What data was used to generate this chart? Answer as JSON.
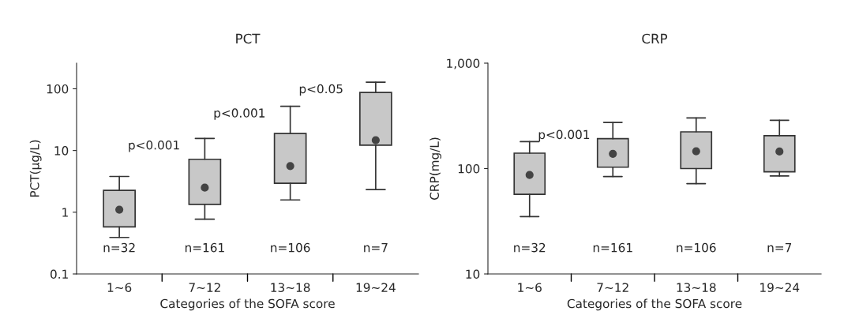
{
  "chart_data": [
    {
      "type": "box",
      "title": "PCT",
      "xlabel": "Categories of the SOFA score",
      "ylabel": "PCT(μg/L)",
      "log": true,
      "ylim": [
        0.1,
        260
      ],
      "yticks": [
        0.1,
        1,
        10,
        100
      ],
      "grid": false,
      "categories": [
        "1∼6",
        "7∼12",
        "13∼18",
        "19∼24"
      ],
      "color": "#c8c8c8",
      "boxes": [
        {
          "low": 0.39,
          "q1": 0.58,
          "median": 1.1,
          "q3": 2.26,
          "high": 3.8
        },
        {
          "low": 0.77,
          "q1": 1.34,
          "median": 2.5,
          "q3": 7.2,
          "high": 15.7
        },
        {
          "low": 1.58,
          "q1": 2.95,
          "median": 5.6,
          "q3": 18.8,
          "high": 52
        },
        {
          "low": 2.33,
          "q1": 12.2,
          "median": 14.7,
          "q3": 87,
          "high": 128
        }
      ],
      "annotations": [
        "n=32",
        "n=161",
        "n=106",
        "n=7",
        "p<0.001",
        "p<0.001",
        "p<0.05"
      ]
    },
    {
      "type": "box",
      "title": "CRP",
      "xlabel": "Categories of the SOFA score",
      "ylabel": "CRP(mg/L)",
      "log": true,
      "ylim": [
        10,
        1000
      ],
      "yticks": [
        10,
        100,
        {
          "value": 1000,
          "label": "1,000"
        }
      ],
      "grid": false,
      "categories": [
        "1∼6",
        "7∼12",
        "13∼18",
        "19∼24"
      ],
      "color": "#c8c8c8",
      "boxes": [
        {
          "low": 35,
          "q1": 57,
          "median": 87,
          "q3": 140,
          "high": 180
        },
        {
          "low": 84,
          "q1": 103,
          "median": 138,
          "q3": 192,
          "high": 274
        },
        {
          "low": 72,
          "q1": 100,
          "median": 146,
          "q3": 223,
          "high": 302
        },
        {
          "low": 85,
          "q1": 93,
          "median": 145,
          "q3": 205,
          "high": 287
        }
      ],
      "annotations": [
        "n=32",
        "n=161",
        "n=106",
        "n=7",
        "p<0.001"
      ]
    }
  ]
}
